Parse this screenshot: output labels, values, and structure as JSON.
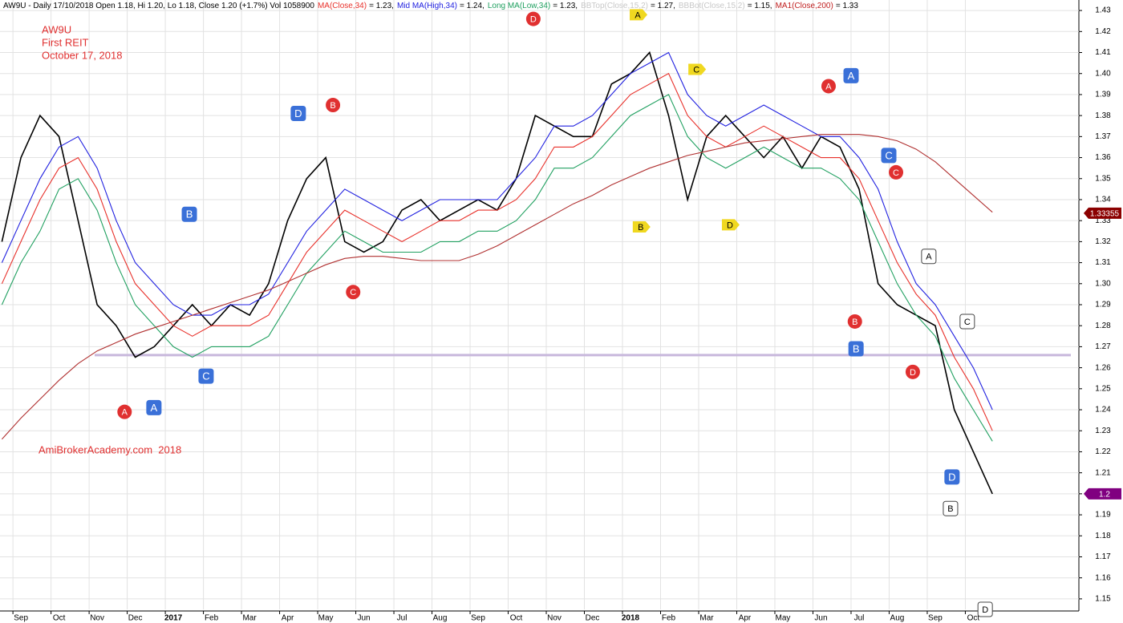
{
  "header": {
    "info": "AW9U - Daily 17/10/2018 Open 1.18, Hi 1.20, Lo 1.18, Close 1.20 (+1.7%) Vol 1058900",
    "indicators": [
      {
        "name": "MA(Close,34)",
        "readout": "= 1.23,",
        "color": "#e8302a"
      },
      {
        "name": "Mid MA(High,34)",
        "readout": "= 1.24,",
        "color": "#2020e0"
      },
      {
        "name": "Long MA(Low,34)",
        "readout": "= 1.23,",
        "color": "#20a060"
      },
      {
        "name": "BBTop(Close,15,2)",
        "readout": "= 1.27,",
        "color": "#c8c8c8"
      },
      {
        "name": "BBBot(Close,15,2)",
        "readout": "= 1.15,",
        "color": "#c8c8c8"
      },
      {
        "name": "MA1(Close,200)",
        "readout": "= 1.33",
        "color": "#c02020"
      }
    ]
  },
  "chart_data": {
    "type": "line",
    "watermark": [
      "AW9U",
      "First REIT",
      "October 17, 2018"
    ],
    "footer": "AmiBrokerAcademy.com  2018",
    "x": [
      -0.5,
      0,
      0.5,
      1,
      1.5,
      2,
      2.5,
      3,
      3.5,
      4,
      4.5,
      5,
      5.5,
      6,
      6.5,
      7,
      7.5,
      8,
      8.5,
      9,
      9.5,
      10,
      10.5,
      11,
      11.5,
      12,
      12.5,
      13,
      13.5,
      14,
      14.5,
      15,
      15.5,
      16,
      16.5,
      17,
      17.5,
      18,
      18.5,
      19,
      19.5,
      20,
      20.5,
      21,
      21.5,
      22,
      22.5,
      23,
      23.5,
      24,
      24.5,
      25,
      25.5
    ],
    "series": [
      {
        "color": "#000000",
        "values": [
          1.32,
          1.36,
          1.38,
          1.37,
          1.33,
          1.29,
          1.28,
          1.265,
          1.27,
          1.28,
          1.29,
          1.28,
          1.29,
          1.285,
          1.3,
          1.33,
          1.35,
          1.36,
          1.32,
          1.315,
          1.32,
          1.335,
          1.34,
          1.33,
          1.335,
          1.34,
          1.335,
          1.35,
          1.38,
          1.375,
          1.37,
          1.37,
          1.395,
          1.4,
          1.41,
          1.38,
          1.34,
          1.37,
          1.38,
          1.37,
          1.36,
          1.37,
          1.355,
          1.37,
          1.365,
          1.345,
          1.3,
          1.29,
          1.285,
          1.28,
          1.24,
          1.22,
          1.2
        ]
      },
      {
        "color": "#2020e0",
        "values": [
          1.31,
          1.33,
          1.35,
          1.365,
          1.37,
          1.355,
          1.33,
          1.31,
          1.3,
          1.29,
          1.285,
          1.285,
          1.29,
          1.29,
          1.295,
          1.31,
          1.325,
          1.335,
          1.345,
          1.34,
          1.335,
          1.33,
          1.335,
          1.34,
          1.34,
          1.34,
          1.34,
          1.35,
          1.36,
          1.375,
          1.375,
          1.38,
          1.39,
          1.4,
          1.405,
          1.41,
          1.39,
          1.38,
          1.375,
          1.38,
          1.385,
          1.38,
          1.375,
          1.37,
          1.37,
          1.36,
          1.345,
          1.32,
          1.3,
          1.29,
          1.275,
          1.26,
          1.24
        ]
      },
      {
        "color": "#e8302a",
        "values": [
          1.3,
          1.32,
          1.34,
          1.355,
          1.36,
          1.345,
          1.32,
          1.3,
          1.29,
          1.28,
          1.275,
          1.28,
          1.28,
          1.28,
          1.285,
          1.3,
          1.315,
          1.325,
          1.335,
          1.33,
          1.325,
          1.32,
          1.325,
          1.33,
          1.33,
          1.335,
          1.335,
          1.34,
          1.35,
          1.365,
          1.365,
          1.37,
          1.38,
          1.39,
          1.395,
          1.4,
          1.38,
          1.37,
          1.365,
          1.37,
          1.375,
          1.37,
          1.365,
          1.36,
          1.36,
          1.35,
          1.33,
          1.31,
          1.295,
          1.285,
          1.265,
          1.25,
          1.23
        ]
      },
      {
        "color": "#20a060",
        "values": [
          1.29,
          1.31,
          1.325,
          1.345,
          1.35,
          1.335,
          1.31,
          1.29,
          1.28,
          1.27,
          1.265,
          1.27,
          1.27,
          1.27,
          1.275,
          1.29,
          1.305,
          1.315,
          1.325,
          1.32,
          1.315,
          1.315,
          1.315,
          1.32,
          1.32,
          1.325,
          1.325,
          1.33,
          1.34,
          1.355,
          1.355,
          1.36,
          1.37,
          1.38,
          1.385,
          1.39,
          1.37,
          1.36,
          1.355,
          1.36,
          1.365,
          1.36,
          1.355,
          1.355,
          1.35,
          1.34,
          1.32,
          1.3,
          1.285,
          1.275,
          1.255,
          1.24,
          1.225
        ]
      },
      {
        "color": "#b03030",
        "values": [
          1.226,
          1.236,
          1.245,
          1.254,
          1.262,
          1.268,
          1.272,
          1.276,
          1.279,
          1.282,
          1.285,
          1.288,
          1.291,
          1.294,
          1.297,
          1.301,
          1.305,
          1.309,
          1.312,
          1.313,
          1.313,
          1.312,
          1.311,
          1.311,
          1.311,
          1.314,
          1.318,
          1.323,
          1.328,
          1.333,
          1.338,
          1.342,
          1.347,
          1.351,
          1.355,
          1.358,
          1.361,
          1.363,
          1.365,
          1.367,
          1.368,
          1.369,
          1.37,
          1.371,
          1.371,
          1.371,
          1.37,
          1.368,
          1.364,
          1.358,
          1.35,
          1.342,
          1.334
        ]
      }
    ],
    "hline": {
      "value": 1.266,
      "color": "#c8b8dc"
    },
    "tags": [
      {
        "value": 1.33355,
        "color": "#8b0000"
      },
      {
        "value": 1.2,
        "color": "#800080"
      }
    ],
    "annotations": [
      {
        "x": 2.72,
        "y": 1.239,
        "label": "A",
        "color": "#e03030",
        "shape": "circle"
      },
      {
        "x": 8.19,
        "y": 1.385,
        "label": "B",
        "color": "#e03030",
        "shape": "circle"
      },
      {
        "x": 8.72,
        "y": 1.296,
        "label": "C",
        "color": "#e03030",
        "shape": "circle"
      },
      {
        "x": 13.45,
        "y": 1.426,
        "label": "D",
        "color": "#e03030",
        "shape": "circle"
      },
      {
        "x": 21.2,
        "y": 1.394,
        "label": "A",
        "color": "#e03030",
        "shape": "circle"
      },
      {
        "x": 21.89,
        "y": 1.282,
        "label": "B",
        "color": "#e03030",
        "shape": "circle"
      },
      {
        "x": 22.97,
        "y": 1.353,
        "label": "C",
        "color": "#e03030",
        "shape": "circle"
      },
      {
        "x": 23.41,
        "y": 1.258,
        "label": "D",
        "color": "#e03030",
        "shape": "circle"
      },
      {
        "x": 3.49,
        "y": 1.241,
        "label": "A",
        "color": "#3a70d8",
        "shape": "square"
      },
      {
        "x": 4.42,
        "y": 1.333,
        "label": "B",
        "color": "#3a70d8",
        "shape": "square"
      },
      {
        "x": 4.86,
        "y": 1.256,
        "label": "C",
        "color": "#3a70d8",
        "shape": "square"
      },
      {
        "x": 7.28,
        "y": 1.381,
        "label": "D",
        "color": "#3a70d8",
        "shape": "square"
      },
      {
        "x": 21.79,
        "y": 1.399,
        "label": "A",
        "color": "#3a70d8",
        "shape": "square"
      },
      {
        "x": 21.92,
        "y": 1.269,
        "label": "B",
        "color": "#3a70d8",
        "shape": "square"
      },
      {
        "x": 22.78,
        "y": 1.361,
        "label": "C",
        "color": "#3a70d8",
        "shape": "square"
      },
      {
        "x": 24.44,
        "y": 1.208,
        "label": "D",
        "color": "#3a70d8",
        "shape": "square"
      },
      {
        "x": 16.19,
        "y": 1.428,
        "label": "A",
        "color": "#f0d820",
        "shape": "tag"
      },
      {
        "x": 16.27,
        "y": 1.327,
        "label": "B",
        "color": "#f0d820",
        "shape": "tag"
      },
      {
        "x": 17.73,
        "y": 1.402,
        "label": "C",
        "color": "#f0d820",
        "shape": "tag"
      },
      {
        "x": 18.61,
        "y": 1.328,
        "label": "D",
        "color": "#f0d820",
        "shape": "tag"
      },
      {
        "x": 23.83,
        "y": 1.313,
        "label": "A",
        "color": "#ffffff",
        "shape": "square"
      },
      {
        "x": 24.4,
        "y": 1.193,
        "label": "B",
        "color": "#ffffff",
        "shape": "square"
      },
      {
        "x": 24.84,
        "y": 1.282,
        "label": "C",
        "color": "#ffffff",
        "shape": "square"
      },
      {
        "x": 25.31,
        "y": 1.145,
        "label": "D",
        "color": "#ffffff",
        "shape": "square"
      }
    ],
    "xlim": [
      -0.55,
      27.77
    ],
    "xticks": [
      {
        "value": 0,
        "label": "Sep"
      },
      {
        "value": 1,
        "label": "Oct"
      },
      {
        "value": 2,
        "label": "Nov"
      },
      {
        "value": 3,
        "label": "Dec"
      },
      {
        "value": 4,
        "label": "2017"
      },
      {
        "value": 5,
        "label": "Feb"
      },
      {
        "value": 6,
        "label": "Mar"
      },
      {
        "value": 7,
        "label": "Apr"
      },
      {
        "value": 8,
        "label": "May"
      },
      {
        "value": 9,
        "label": "Jun"
      },
      {
        "value": 10,
        "label": "Jul"
      },
      {
        "value": 11,
        "label": "Aug"
      },
      {
        "value": 12,
        "label": "Sep"
      },
      {
        "value": 13,
        "label": "Oct"
      },
      {
        "value": 14,
        "label": "Nov"
      },
      {
        "value": 15,
        "label": "Dec"
      },
      {
        "value": 16,
        "label": "2018"
      },
      {
        "value": 17,
        "label": "Feb"
      },
      {
        "value": 18,
        "label": "Mar"
      },
      {
        "value": 19,
        "label": "Apr"
      },
      {
        "value": 20,
        "label": "May"
      },
      {
        "value": 21,
        "label": "Jun"
      },
      {
        "value": 22,
        "label": "Jul"
      },
      {
        "value": 23,
        "label": "Aug"
      },
      {
        "value": 24,
        "label": "Sep"
      },
      {
        "value": 25,
        "label": "Oct"
      }
    ],
    "ylim": [
      1.145,
      1.435
    ],
    "yticks": [
      1.15,
      1.16,
      1.17,
      1.18,
      1.19,
      {
        "value": 1.2,
        "label": "1.20"
      },
      1.21,
      1.22,
      1.23,
      1.24,
      1.25,
      1.26,
      1.27,
      1.28,
      1.29,
      {
        "value": 1.3,
        "label": "1.30"
      },
      1.31,
      1.32,
      1.33,
      1.34,
      1.35,
      1.36,
      1.37,
      1.38,
      1.39,
      {
        "value": 1.4,
        "label": "1.40"
      },
      1.41,
      1.42,
      1.43
    ],
    "grid": true
  }
}
